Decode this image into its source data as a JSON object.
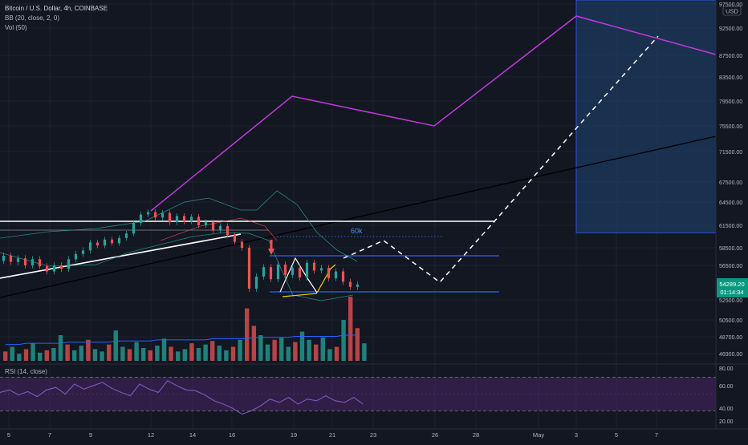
{
  "header": {
    "symbol_line": "Bitcoin / U.S. Dollar, 4h, COINBASE",
    "indicators": [
      "BB (20, close, 2, 0)",
      "Vol (50)"
    ],
    "rsi_label": "RSI (14, close)",
    "currency_badge": "USD"
  },
  "annotation_60k": "60k",
  "price_badge": {
    "price": "54289.20",
    "countdown": "01:14:34"
  },
  "colors": {
    "background": "#131722",
    "bull": "#26a69a",
    "bear": "#ef5350",
    "projection_purple": "#c039d9",
    "level_blue": "#2962ff",
    "forecast_box": "#1e3a5f",
    "rsi_band": "#4a2466",
    "rsi_line": "#7e57c2"
  },
  "chart_data": [
    {
      "type": "candlestick",
      "title": "Bitcoin / U.S. Dollar, 4h, COINBASE",
      "x_tick_labels": [
        "5",
        "7",
        "9",
        "12",
        "14",
        "16",
        "19",
        "21",
        "23",
        "26",
        "28",
        "May",
        "3",
        "5",
        "7"
      ],
      "y_tick_labels": [
        "97500.00",
        "92500.00",
        "87500.00",
        "83500.00",
        "79500.00",
        "75500.00",
        "71500.00",
        "67500.00",
        "64500.00",
        "61500.00",
        "58500.00",
        "56500.00",
        "52500.00",
        "50500.00",
        "48700.00",
        "46900.00"
      ],
      "ylim": [
        46000,
        98000
      ],
      "price_points": [
        [
          0,
          57000
        ],
        [
          2,
          57600
        ],
        [
          4,
          56900
        ],
        [
          6,
          57300
        ],
        [
          8,
          56500
        ],
        [
          10,
          57200
        ],
        [
          12,
          56400
        ],
        [
          14,
          55800
        ],
        [
          16,
          56500
        ],
        [
          18,
          56100
        ],
        [
          20,
          57200
        ],
        [
          22,
          57800
        ],
        [
          24,
          58200
        ],
        [
          26,
          59200
        ],
        [
          28,
          58800
        ],
        [
          30,
          59600
        ],
        [
          32,
          59100
        ],
        [
          34,
          59800
        ],
        [
          36,
          60400
        ],
        [
          38,
          61800
        ],
        [
          40,
          62900
        ],
        [
          42,
          63200
        ],
        [
          44,
          62500
        ],
        [
          46,
          63100
        ],
        [
          48,
          61900
        ],
        [
          50,
          62700
        ],
        [
          52,
          62000
        ],
        [
          54,
          62600
        ],
        [
          56,
          61500
        ],
        [
          58,
          61900
        ],
        [
          60,
          60800
        ],
        [
          62,
          61400
        ],
        [
          64,
          60200
        ],
        [
          66,
          59300
        ],
        [
          68,
          58500
        ],
        [
          70,
          53800
        ],
        [
          72,
          55200
        ],
        [
          74,
          56300
        ],
        [
          76,
          54900
        ],
        [
          78,
          56600
        ],
        [
          80,
          55400
        ],
        [
          82,
          56200
        ],
        [
          84,
          55100
        ],
        [
          86,
          56800
        ],
        [
          88,
          55900
        ],
        [
          90,
          56200
        ],
        [
          92,
          55000
        ],
        [
          94,
          55800
        ],
        [
          96,
          54600
        ],
        [
          98,
          54000
        ],
        [
          100,
          54289
        ]
      ],
      "levels": [
        61800,
        57600,
        53600
      ],
      "level_60k": 60000,
      "projection_line": [
        [
          24,
          64500
        ],
        [
          48,
          80200
        ],
        [
          72,
          75800
        ],
        [
          100,
          95200
        ],
        [
          116,
          87500
        ]
      ],
      "forecast_path": [
        [
          78,
          57200
        ],
        [
          88,
          59500
        ],
        [
          100,
          55000
        ],
        [
          112,
          61700
        ],
        [
          124,
          71000
        ],
        [
          136,
          84000
        ],
        [
          150,
          91000
        ]
      ],
      "forecast_box": {
        "t_start": 100,
        "t_end": 120,
        "y_top": 98000,
        "y_bottom": 60500
      },
      "uptrend_line": [
        [
          0,
          56000
        ],
        [
          60,
          60500
        ]
      ],
      "long_trendline": [
        [
          0,
          53200
        ],
        [
          146,
          73500
        ]
      ],
      "white_level": 61800
    },
    {
      "type": "bar",
      "title": "Vol (50)",
      "values": [
        8,
        12,
        6,
        10,
        15,
        7,
        9,
        11,
        22,
        14,
        9,
        13,
        18,
        10,
        8,
        14,
        26,
        12,
        10,
        16,
        11,
        9,
        13,
        19,
        12,
        8,
        10,
        15,
        11,
        14,
        17,
        13,
        9,
        12,
        18,
        45,
        30,
        22,
        14,
        18,
        20,
        12,
        16,
        25,
        18,
        14,
        20,
        10,
        12,
        35,
        55,
        28,
        15
      ],
      "ma_values": [
        14,
        14,
        14,
        15,
        15,
        15,
        15,
        15,
        15,
        16,
        16,
        16,
        16,
        16,
        16,
        16,
        17,
        17,
        17,
        17,
        17,
        17,
        18,
        18,
        18,
        18,
        18,
        18,
        18,
        18,
        19,
        19,
        19,
        19,
        19,
        19,
        20,
        20,
        20,
        20,
        20,
        20,
        21,
        21,
        21,
        21,
        21,
        21,
        21,
        22,
        22,
        22,
        22
      ]
    },
    {
      "type": "line",
      "title": "RSI (14, close)",
      "y_tick_labels": [
        "80.00",
        "60.00",
        "40.00",
        "20.00"
      ],
      "ylim": [
        15,
        85
      ],
      "bands": [
        70,
        30
      ],
      "values": [
        52,
        55,
        49,
        53,
        47,
        55,
        58,
        50,
        62,
        56,
        60,
        64,
        57,
        52,
        48,
        62,
        56,
        52,
        66,
        60,
        55,
        54,
        49,
        42,
        38,
        33,
        26,
        30,
        36,
        44,
        40,
        46,
        38,
        44,
        42,
        48,
        42,
        40,
        46,
        38
      ]
    }
  ]
}
